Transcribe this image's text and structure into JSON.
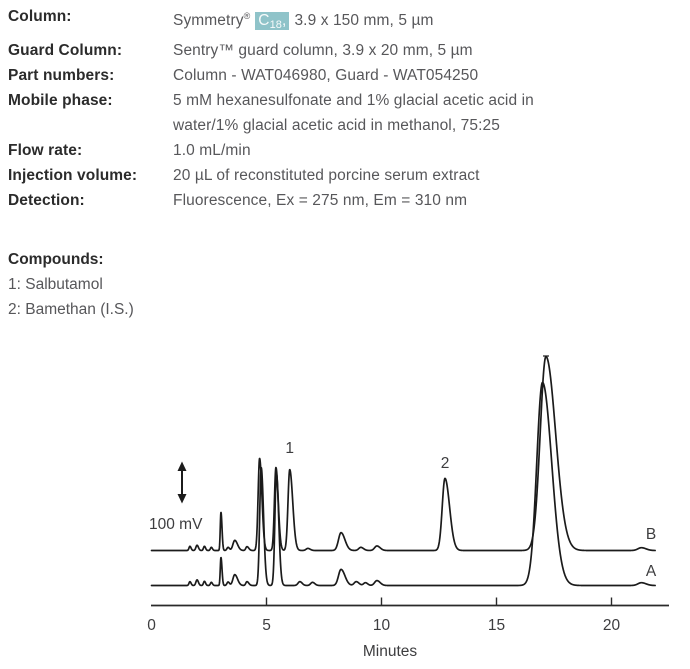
{
  "method": {
    "rows": [
      {
        "label": "Column:",
        "value_pre": "Symmetry",
        "value_reg": "®",
        "value_hl_c": "C",
        "value_hl_sub": "18",
        "value_hl_comma": ",",
        "value_post": "3.9 x 150 mm, 5 µm"
      },
      {
        "label": "Guard Column:",
        "value": "Sentry™ guard column, 3.9 x 20 mm, 5 µm"
      },
      {
        "label": "Part numbers:",
        "value": "Column - WAT046980, Guard - WAT054250"
      },
      {
        "label": "Mobile phase:",
        "value": "5 mM hexanesulfonate and 1% glacial acetic acid in"
      },
      {
        "label": "",
        "value": "water/1% glacial acetic acid in methanol, 75:25"
      },
      {
        "label": "Flow rate:",
        "value": "1.0 mL/min"
      },
      {
        "label": "Injection volume:",
        "value": "20 µL of reconstituted porcine serum extract"
      },
      {
        "label": "Detection:",
        "value": "Fluorescence, Ex = 275 nm, Em = 310 nm"
      }
    ]
  },
  "compounds": {
    "heading": "Compounds:",
    "items": [
      "1: Salbutamol",
      "2: Bamethan (I.S.)"
    ]
  },
  "chart_data": {
    "type": "line",
    "xlabel": "Minutes",
    "xlim": [
      0,
      21.9
    ],
    "x_ticks": [
      0,
      5,
      10,
      15,
      20
    ],
    "y_unit": "mV",
    "y_scale_bar": {
      "label": "100 mV",
      "mV": 100
    },
    "peak_labels": [
      {
        "text": "1",
        "minutes": 6.01,
        "compound": "Salbutamol"
      },
      {
        "text": "2",
        "minutes": 12.76,
        "compound": "Bamethan (I.S.)"
      }
    ],
    "traces": [
      {
        "label": "B",
        "peaks_t_mV_wL_wR": [
          [
            1.67,
            12,
            0.04,
            0.05
          ],
          [
            1.98,
            15,
            0.05,
            0.06
          ],
          [
            2.3,
            12,
            0.04,
            0.05
          ],
          [
            2.6,
            9,
            0.04,
            0.05
          ],
          [
            3.02,
            109,
            0.03,
            0.045
          ],
          [
            3.33,
            9,
            0.05,
            0.06
          ],
          [
            3.62,
            29,
            0.08,
            0.12
          ],
          [
            4.15,
            11,
            0.05,
            0.08
          ],
          [
            4.7,
            263,
            0.065,
            0.1
          ],
          [
            5.41,
            237,
            0.065,
            0.1
          ],
          [
            6.01,
            231,
            0.075,
            0.13
          ],
          [
            6.8,
            6,
            0.08,
            0.1
          ],
          [
            8.24,
            51,
            0.11,
            0.17
          ],
          [
            9.1,
            9,
            0.09,
            0.12
          ],
          [
            9.8,
            13,
            0.1,
            0.14
          ],
          [
            12.76,
            206,
            0.12,
            0.2
          ],
          [
            17.15,
            554,
            0.25,
            0.42
          ],
          [
            21.3,
            8,
            0.15,
            0.2
          ]
        ]
      },
      {
        "label": "A",
        "peaks_t_mV_wL_wR": [
          [
            1.67,
            11,
            0.04,
            0.05
          ],
          [
            1.98,
            16,
            0.05,
            0.06
          ],
          [
            2.3,
            12,
            0.04,
            0.05
          ],
          [
            2.6,
            9,
            0.04,
            0.05
          ],
          [
            3.02,
            80,
            0.03,
            0.045
          ],
          [
            3.33,
            10,
            0.05,
            0.06
          ],
          [
            3.62,
            31,
            0.08,
            0.12
          ],
          [
            4.15,
            11,
            0.05,
            0.08
          ],
          [
            4.77,
            337,
            0.065,
            0.1
          ],
          [
            5.43,
            320,
            0.065,
            0.1
          ],
          [
            6.45,
            11,
            0.08,
            0.1
          ],
          [
            7.0,
            9,
            0.08,
            0.1
          ],
          [
            8.24,
            46,
            0.11,
            0.17
          ],
          [
            8.9,
            11,
            0.09,
            0.12
          ],
          [
            9.3,
            8,
            0.08,
            0.1
          ],
          [
            9.8,
            14,
            0.1,
            0.14
          ],
          [
            17.0,
            580,
            0.25,
            0.4
          ],
          [
            21.3,
            8,
            0.15,
            0.2
          ]
        ]
      }
    ]
  }
}
